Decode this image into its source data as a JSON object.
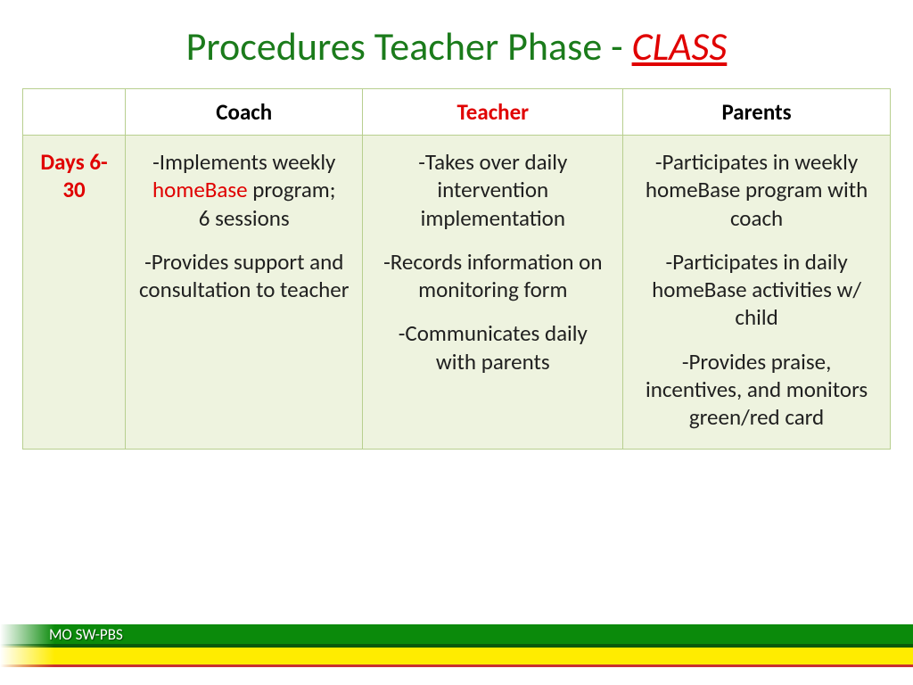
{
  "title": {
    "part1": "Procedures Teacher Phase - ",
    "part2": "CLASS",
    "part1_color": "#1b7b1b",
    "part2_color": "#e00000",
    "fontsize": 44
  },
  "table": {
    "border_color": "#b8cf8f",
    "body_bg": "#eef3df",
    "head_bg": "#ffffff",
    "fontsize": 25,
    "columns": [
      "",
      "Coach",
      "Teacher",
      "Parents"
    ],
    "teacher_head_color": "#e00000",
    "col_widths": [
      "115px",
      "auto",
      "auto",
      "auto"
    ],
    "rows": [
      {
        "label": "Days 6-30",
        "label_color": "#e00000",
        "coach": {
          "items": [
            {
              "pre": "-Implements weekly ",
              "hl": "homeBase",
              "post": " program;\n6 sessions"
            },
            {
              "text": "-Provides support and consultation to teacher"
            }
          ]
        },
        "teacher": {
          "items": [
            {
              "text": "-Takes over daily intervention implementation"
            },
            {
              "text": "-Records information on monitoring form"
            },
            {
              "text": "-Communicates daily with parents"
            }
          ]
        },
        "parents": {
          "items": [
            {
              "text": "-Participates in weekly homeBase program with coach"
            },
            {
              "text": "-Participates in daily homeBase activities w/ child"
            },
            {
              "text": "-Provides praise, incentives, and monitors green/red card"
            }
          ]
        }
      }
    ]
  },
  "footer": {
    "label": "MO SW-PBS",
    "green": "#0b8a0b",
    "yellow": "#ffec00",
    "red": "#c83030",
    "text_color": "#ffffff"
  }
}
